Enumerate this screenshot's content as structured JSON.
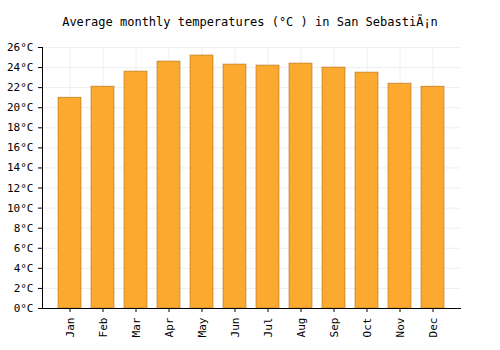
{
  "chart_data": {
    "type": "bar",
    "title": "Average monthly temperatures (°C ) in San SebastiÃ¡n",
    "categories": [
      "Jan",
      "Feb",
      "Mar",
      "Apr",
      "May",
      "Jun",
      "Jul",
      "Aug",
      "Sep",
      "Oct",
      "Nov",
      "Dec"
    ],
    "values": [
      21.0,
      22.1,
      23.6,
      24.6,
      25.2,
      24.3,
      24.2,
      24.4,
      24.0,
      23.5,
      22.4,
      22.1
    ],
    "color": "#fba92f",
    "ylim": [
      0,
      26
    ],
    "yticks": [
      {
        "value": 0,
        "label": "0°C"
      },
      {
        "value": 2,
        "label": "2°C"
      },
      {
        "value": 4,
        "label": "4°C"
      },
      {
        "value": 6,
        "label": "6°C"
      },
      {
        "value": 8,
        "label": "8°C"
      },
      {
        "value": 10,
        "label": "10°C"
      },
      {
        "value": 12,
        "label": "12°C"
      },
      {
        "value": 14,
        "label": "14°C"
      },
      {
        "value": 16,
        "label": "16°C"
      },
      {
        "value": 18,
        "label": "18°C"
      },
      {
        "value": 20,
        "label": "20°C"
      },
      {
        "value": 22,
        "label": "22°C"
      },
      {
        "value": 24,
        "label": "24°C"
      },
      {
        "value": 26,
        "label": "26°C"
      }
    ],
    "grid": true
  }
}
